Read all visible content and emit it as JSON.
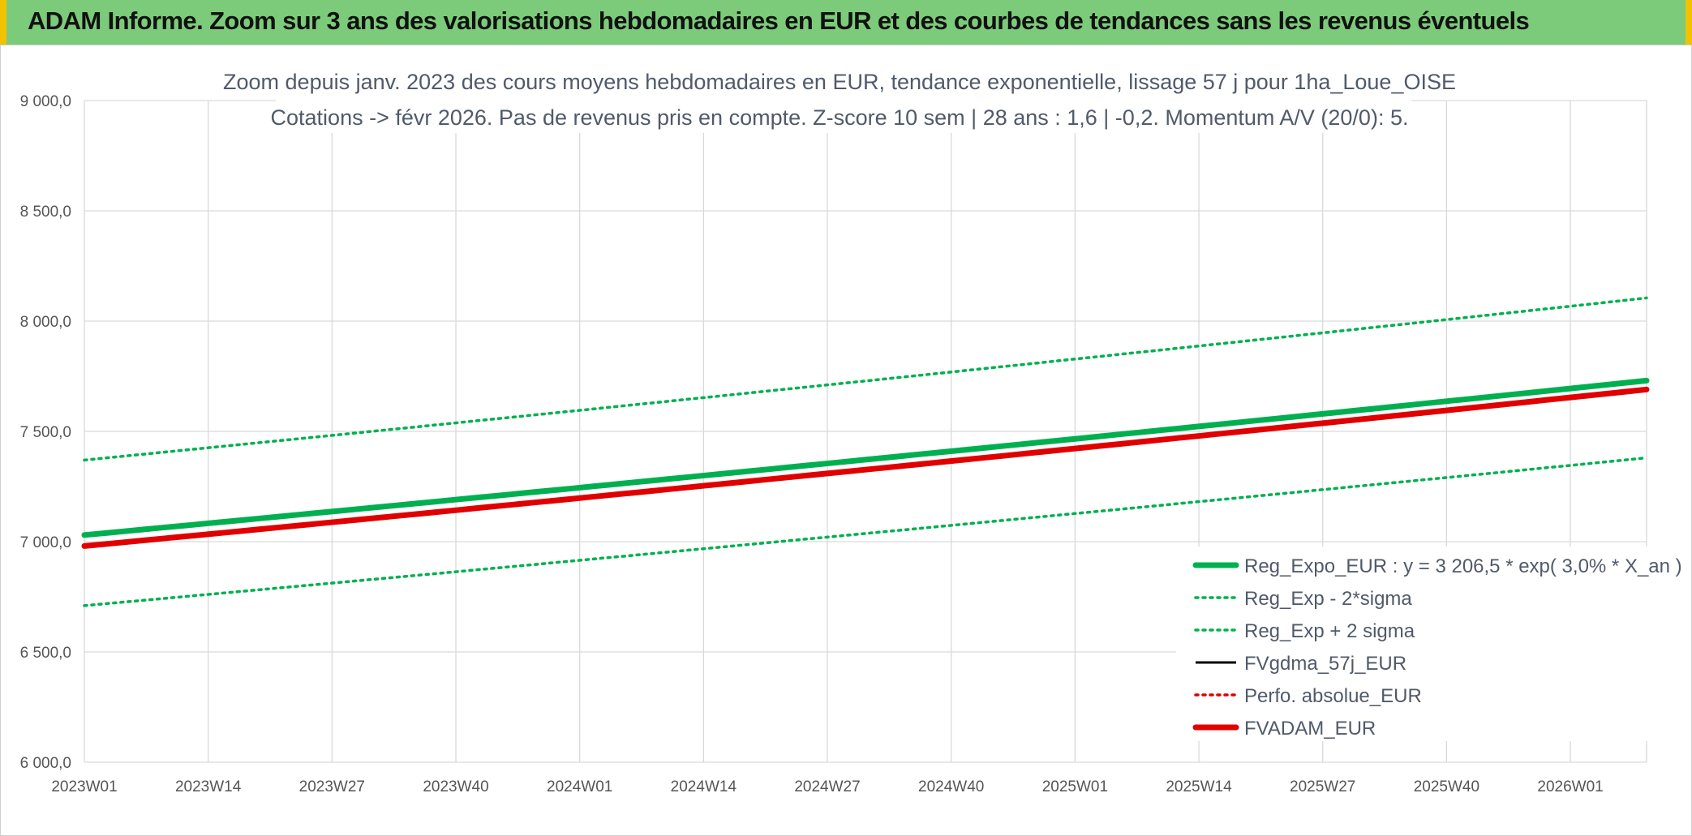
{
  "banner": {
    "title": "ADAM Informe. Zoom sur 3 ans des valorisations hebdomadaires en EUR et des courbes de tendances sans les revenus éventuels"
  },
  "colors": {
    "banner_bg": "#7ccb7a",
    "accent": "#f2c200",
    "green": "#00b050",
    "red": "#e00000",
    "black": "#000000",
    "grid": "#d9d9d9"
  },
  "chart_data": {
    "type": "line",
    "title_lines": [
      "Zoom depuis janv. 2023 des cours moyens hebdomadaires en EUR, tendance exponentielle, lissage 57 j pour 1ha_Loue_OISE",
      "Cotations -> févr 2026. Pas de revenus pris en compte. Z-score 10 sem | 28 ans : 1,6 | -0,2. Momentum A/V (20/0): 5."
    ],
    "xlabel": "",
    "ylabel": "",
    "x_tick_labels": [
      "2023W01",
      "2023W14",
      "2023W27",
      "2023W40",
      "2024W01",
      "2024W14",
      "2024W27",
      "2024W40",
      "2025W01",
      "2025W14",
      "2025W27",
      "2025W40",
      "2026W01"
    ],
    "x_tick_weeks": [
      0,
      13,
      26,
      39,
      52,
      65,
      78,
      91,
      104,
      117,
      130,
      143,
      156
    ],
    "x_range_weeks": [
      0,
      164
    ],
    "y_ticks": [
      6000,
      6500,
      7000,
      7500,
      8000,
      8500,
      9000
    ],
    "y_tick_labels": [
      "6 000,0",
      "6 500,0",
      "7 000,0",
      "7 500,0",
      "8 000,0",
      "8 500,0",
      "9 000,0"
    ],
    "ylim": [
      6000,
      9000
    ],
    "grid": true,
    "legend_position": "bottom-right",
    "series": [
      {
        "name": "Reg_Expo_EUR : y = 3 206,5 * exp( 3,0% *  X_an )",
        "color": "#00b050",
        "style": "solid-thick",
        "start": 7030,
        "end": 7730
      },
      {
        "name": "Reg_Exp - 2*sigma",
        "color": "#00b050",
        "style": "dotted",
        "start": 6710,
        "end": 7380
      },
      {
        "name": "Reg_Exp + 2 sigma",
        "color": "#00b050",
        "style": "dotted",
        "start": 7370,
        "end": 8105
      },
      {
        "name": "FVgdma_57j_EUR",
        "color": "#000000",
        "style": "solid",
        "start": 6980,
        "end": 7690
      },
      {
        "name": "Perfo. absolue_EUR",
        "color": "#e00000",
        "style": "dotted",
        "start": 6980,
        "end": 7690
      },
      {
        "name": "FVADAM_EUR",
        "color": "#e00000",
        "style": "solid-thick",
        "start": 6980,
        "end": 7690
      }
    ]
  }
}
